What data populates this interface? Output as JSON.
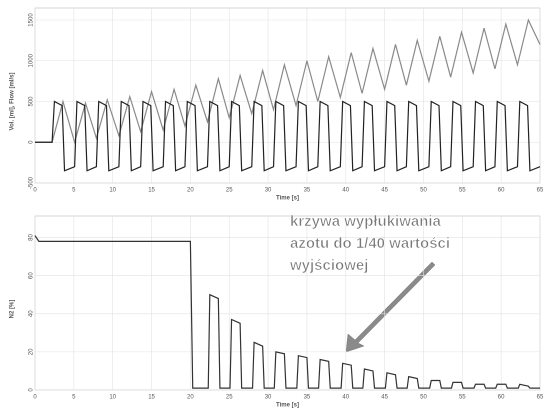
{
  "chart_data": [
    {
      "type": "line",
      "xlabel": "Time [s]",
      "ylabel": "Vol. [ml], Flow [ml/s]",
      "xlim": [
        0,
        65
      ],
      "xticks": [
        0,
        5,
        10,
        15,
        20,
        25,
        30,
        35,
        40,
        45,
        50,
        55,
        60,
        65
      ],
      "ylim": [
        -500,
        1500
      ],
      "yticks": [
        -500,
        0,
        500,
        1000,
        1500
      ],
      "grid": true,
      "series": [
        {
          "color": "#8a8a8a",
          "x": [
            0,
            2.2,
            3.6,
            5.1,
            6.5,
            7.9,
            9.3,
            10.8,
            12.2,
            13.6,
            15.0,
            16.5,
            17.9,
            19.3,
            20.7,
            22.2,
            23.6,
            25.0,
            26.4,
            27.9,
            29.3,
            30.7,
            32.1,
            33.6,
            35.0,
            36.4,
            37.8,
            39.3,
            40.7,
            42.1,
            43.5,
            45.0,
            46.4,
            47.8,
            49.2,
            50.7,
            52.1,
            53.5,
            54.9,
            56.4,
            57.8,
            59.2,
            60.6,
            62.1,
            63.5,
            65
          ],
          "values": [
            0,
            0,
            500,
            0,
            480,
            50,
            520,
            80,
            560,
            130,
            620,
            150,
            650,
            200,
            700,
            250,
            780,
            300,
            820,
            350,
            880,
            400,
            950,
            450,
            1000,
            500,
            1050,
            550,
            1100,
            600,
            1150,
            650,
            1200,
            700,
            1250,
            750,
            1300,
            800,
            1350,
            850,
            1400,
            900,
            1450,
            950,
            1500,
            1200
          ]
        },
        {
          "color": "#222222",
          "x": [
            0,
            2.2,
            2.5,
            3.5,
            3.8,
            5.1,
            5.4,
            6.4,
            6.7,
            7.9,
            8.2,
            9.2,
            9.5,
            10.8,
            11.1,
            12.1,
            12.4,
            13.6,
            13.9,
            14.9,
            15.2,
            16.5,
            16.8,
            17.8,
            18.1,
            19.3,
            19.6,
            20.6,
            20.9,
            22.2,
            22.5,
            23.5,
            23.8,
            25.0,
            25.3,
            26.3,
            26.6,
            27.9,
            28.2,
            29.2,
            29.5,
            30.7,
            31.0,
            32.0,
            32.3,
            33.6,
            33.9,
            34.9,
            35.2,
            36.4,
            36.7,
            37.7,
            38.0,
            39.3,
            39.6,
            40.6,
            40.9,
            42.1,
            42.4,
            43.4,
            43.7,
            45.0,
            45.3,
            46.3,
            46.6,
            47.8,
            48.1,
            49.1,
            49.4,
            50.7,
            51.0,
            52.0,
            52.3,
            53.5,
            53.8,
            54.8,
            55.1,
            56.4,
            56.7,
            57.7,
            58.0,
            59.2,
            59.5,
            60.5,
            60.8,
            62.1,
            62.4,
            63.4,
            63.7,
            65
          ],
          "values": [
            0,
            0,
            500,
            450,
            -350,
            -300,
            500,
            450,
            -350,
            -300,
            500,
            450,
            -350,
            -300,
            500,
            450,
            -350,
            -300,
            500,
            450,
            -350,
            -300,
            500,
            450,
            -350,
            -300,
            500,
            450,
            -350,
            -300,
            500,
            450,
            -350,
            -300,
            500,
            450,
            -350,
            -300,
            500,
            450,
            -350,
            -300,
            500,
            450,
            -350,
            -300,
            500,
            450,
            -350,
            -300,
            500,
            450,
            -350,
            -300,
            500,
            450,
            -350,
            -300,
            500,
            450,
            -350,
            -300,
            500,
            450,
            -350,
            -300,
            500,
            450,
            -350,
            -300,
            500,
            450,
            -350,
            -300,
            500,
            450,
            -350,
            -300,
            500,
            450,
            -350,
            -300,
            500,
            450,
            -350,
            -300,
            500,
            450,
            -350,
            -300
          ]
        }
      ]
    },
    {
      "type": "line",
      "xlabel": "Time [s]",
      "ylabel": "N2 [%]",
      "xlim": [
        0,
        65
      ],
      "xticks": [
        0,
        5,
        10,
        15,
        20,
        25,
        30,
        35,
        40,
        45,
        50,
        55,
        60,
        65
      ],
      "ylim": [
        0,
        85
      ],
      "yticks": [
        0,
        20,
        40,
        60,
        80
      ],
      "grid": true,
      "annotation": [
        "krzywa wypłukiwania",
        "azotu do 1/40 wartości",
        "wyjściowej"
      ],
      "series": [
        {
          "color": "#333333",
          "x": [
            0,
            0.5,
            20,
            20.3,
            22.3,
            22.5,
            23.6,
            23.8,
            25.1,
            25.3,
            26.4,
            26.6,
            28.0,
            28.2,
            29.3,
            29.5,
            30.8,
            31.0,
            32.1,
            32.3,
            33.7,
            33.9,
            35.0,
            35.2,
            36.5,
            36.7,
            37.8,
            38.0,
            39.4,
            39.6,
            40.7,
            40.9,
            42.2,
            42.4,
            43.5,
            43.7,
            45.1,
            45.3,
            46.4,
            46.6,
            47.9,
            48.1,
            49.2,
            49.4,
            50.8,
            51.0,
            52.1,
            52.3,
            53.6,
            53.8,
            54.9,
            55.1,
            56.5,
            56.7,
            57.8,
            58.0,
            59.3,
            59.5,
            60.6,
            60.8,
            62.2,
            62.4,
            63.5,
            63.7,
            65
          ],
          "values": [
            81,
            78,
            78,
            1,
            1,
            50,
            48,
            1,
            1,
            37,
            35,
            1,
            1,
            25,
            23,
            1,
            1,
            20,
            19,
            1,
            1,
            18,
            17,
            1,
            1,
            16,
            15,
            1,
            1,
            14,
            13,
            1,
            1,
            11,
            10,
            1,
            1,
            9,
            8,
            1,
            1,
            7,
            6,
            1,
            1,
            5,
            5,
            1,
            1,
            4,
            4,
            1,
            1,
            3,
            3,
            1,
            1,
            3,
            3,
            1,
            1,
            3,
            2,
            1,
            1
          ]
        }
      ]
    }
  ]
}
